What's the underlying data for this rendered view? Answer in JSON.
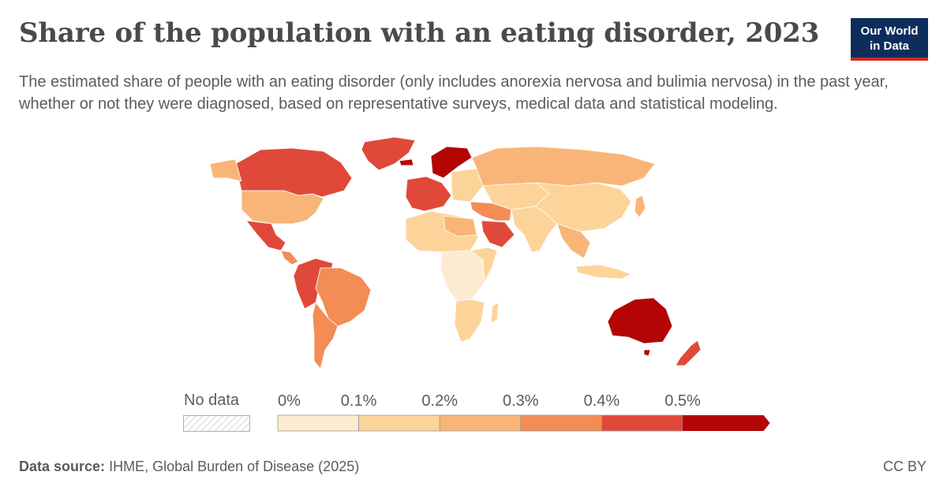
{
  "header": {
    "title": "Share of the population with an eating disorder, 2023",
    "subtitle": "The estimated share of people with an eating disorder (only includes anorexia nervosa and bulimia nervosa) in the past year, whether or not they were diagnosed, based on representative surveys, medical data and statistical modeling.",
    "logo_line1": "Our World",
    "logo_line2": "in Data"
  },
  "legend": {
    "no_data_label": "No data",
    "ticks": [
      "0%",
      "0.1%",
      "0.2%",
      "0.3%",
      "0.4%",
      "0.5%"
    ],
    "colors": [
      "#fdebd1",
      "#fcd49a",
      "#f9b577",
      "#f38c55",
      "#e0493a",
      "#b40505"
    ]
  },
  "map_colors": {
    "ocean": "#ffffff",
    "border": "#ffffff",
    "no_data": "#e6e6e6"
  },
  "footer": {
    "source_label": "Data source:",
    "source_text": "IHME, Global Burden of Disease (2025)",
    "license": "CC BY"
  }
}
